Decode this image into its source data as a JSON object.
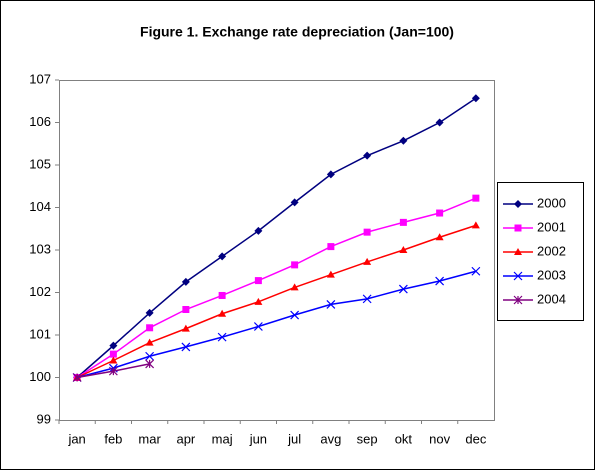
{
  "chart_data": {
    "type": "line",
    "title": "Figure 1. Exchange rate depreciation (Jan=100)",
    "categories": [
      "jan",
      "feb",
      "mar",
      "apr",
      "maj",
      "jun",
      "jul",
      "avg",
      "sep",
      "okt",
      "nov",
      "dec"
    ],
    "series": [
      {
        "name": "2000",
        "color": "#000080",
        "marker": "diamond",
        "values": [
          100,
          100.75,
          101.52,
          102.25,
          102.85,
          103.45,
          104.12,
          104.78,
          105.22,
          105.57,
          106.0,
          106.57
        ]
      },
      {
        "name": "2001",
        "color": "#ff00ff",
        "marker": "square",
        "values": [
          100,
          100.55,
          101.17,
          101.6,
          101.93,
          102.28,
          102.65,
          103.08,
          103.42,
          103.65,
          103.87,
          104.22
        ]
      },
      {
        "name": "2002",
        "color": "#ff0000",
        "marker": "triangle",
        "values": [
          100,
          100.4,
          100.82,
          101.15,
          101.5,
          101.78,
          102.12,
          102.42,
          102.72,
          103.0,
          103.3,
          103.58
        ]
      },
      {
        "name": "2003",
        "color": "#0000ff",
        "marker": "x",
        "values": [
          100,
          100.22,
          100.5,
          100.72,
          100.95,
          101.2,
          101.47,
          101.72,
          101.85,
          102.08,
          102.27,
          102.5
        ]
      },
      {
        "name": "2004",
        "color": "#800080",
        "marker": "star",
        "values": [
          100,
          100.15,
          100.32,
          null,
          null,
          null,
          null,
          null,
          null,
          null,
          null,
          null
        ]
      }
    ],
    "ylim": [
      99,
      107
    ],
    "yticks": [
      99,
      100,
      101,
      102,
      103,
      104,
      105,
      106,
      107
    ],
    "legend": "right"
  }
}
